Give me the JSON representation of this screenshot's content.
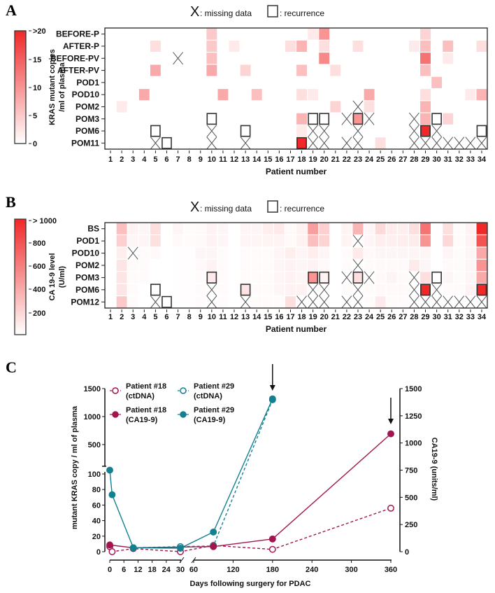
{
  "colors": {
    "high": "#f02828",
    "low": "#ffffff",
    "p18": "#a3154f",
    "p29": "#12808f",
    "frame": "#222222"
  },
  "chart_data": [
    {
      "type": "heatmap",
      "panel_label": "A",
      "legend": {
        "missing_symbol": "X",
        "missing_text": ": missing data",
        "recurrence_text": ": recurrence"
      },
      "colorbar": {
        "title_line1": "KRAS mutant copies",
        "title_line2": "/ml of plasma",
        "ticks": [
          ">20",
          "15",
          "10",
          "5",
          "0"
        ],
        "range": [
          0,
          20
        ]
      },
      "xlabel": "Patient number",
      "patients": [
        "1",
        "2",
        "3",
        "4",
        "5",
        "6",
        "7",
        "8",
        "9",
        "10",
        "11",
        "12",
        "13",
        "14",
        "15",
        "16",
        "17",
        "18",
        "19",
        "20",
        "21",
        "22",
        "23",
        "24",
        "25",
        "26",
        "27",
        "28",
        "29",
        "30",
        "31",
        "32",
        "33",
        "34"
      ],
      "rows": [
        {
          "label": "BEFORE-P",
          "cells": {
            "10": 5,
            "19": 2,
            "20": 10,
            "29": 4
          },
          "missing": [],
          "recurrence": []
        },
        {
          "label": "AFTER-P",
          "cells": {
            "5": 3,
            "10": 5,
            "12": 2,
            "17": 3,
            "18": 7,
            "20": 3,
            "23": 3,
            "28": 2,
            "29": 6,
            "31": 6,
            "34": 3
          },
          "missing": [],
          "recurrence": []
        },
        {
          "label": "BEFORE-PV",
          "cells": {
            "10": 6,
            "20": 11,
            "29": 13,
            "31": 2
          },
          "missing": [
            7
          ],
          "recurrence": []
        },
        {
          "label": "AFTER-PV",
          "cells": {
            "5": 8,
            "10": 8,
            "13": 4,
            "18": 6,
            "21": 3,
            "29": 6
          },
          "missing": [],
          "recurrence": []
        },
        {
          "label": "POD1",
          "cells": {
            "30": 6
          },
          "missing": [],
          "recurrence": []
        },
        {
          "label": "POD10",
          "cells": {
            "4": 8,
            "11": 8,
            "14": 6,
            "18": 3,
            "19": 2,
            "24": 8,
            "29": 3,
            "33": 2,
            "34": 7
          },
          "missing": [],
          "recurrence": []
        },
        {
          "label": "POM2",
          "cells": {
            "2": 2,
            "21": 4,
            "24": 3,
            "29": 7
          },
          "missing": [
            23
          ],
          "recurrence": []
        },
        {
          "label": "POM3",
          "cells": {
            "18": 7,
            "23": 10,
            "29": 7,
            "31": 4
          },
          "missing": [
            22,
            24,
            28
          ],
          "recurrence": [
            10,
            19,
            20,
            23,
            30
          ]
        },
        {
          "label": "POM6",
          "cells": {
            "18": 2,
            "29": 20
          },
          "missing": [
            10,
            19,
            20,
            23,
            28,
            30
          ],
          "recurrence": [
            5,
            13,
            29,
            34
          ]
        },
        {
          "label": "POM11",
          "cells": {
            "18": 20,
            "25": 3
          },
          "missing": [
            5,
            10,
            13,
            19,
            20,
            22,
            23,
            28,
            29,
            30,
            31,
            32,
            33,
            34
          ],
          "recurrence": [
            6,
            18
          ]
        }
      ]
    },
    {
      "type": "heatmap",
      "panel_label": "B",
      "legend": {
        "missing_symbol": "X",
        "missing_text": ": missing data",
        "recurrence_text": ": recurrence"
      },
      "colorbar": {
        "title_line1": "CA 19-9 level",
        "title_line2": "(U/ml)",
        "ticks": [
          "> 1000",
          "800",
          "600",
          "400",
          "200"
        ],
        "range": [
          0,
          1000
        ]
      },
      "xlabel": "Patient number",
      "patients": [
        "1",
        "2",
        "3",
        "4",
        "5",
        "6",
        "7",
        "8",
        "9",
        "10",
        "11",
        "12",
        "13",
        "14",
        "15",
        "16",
        "17",
        "18",
        "19",
        "20",
        "21",
        "22",
        "23",
        "24",
        "25",
        "26",
        "27",
        "28",
        "29",
        "30",
        "31",
        "32",
        "33",
        "34"
      ],
      "rows": [
        {
          "label": "BS",
          "values": [
            0,
            300,
            60,
            40,
            150,
            0,
            40,
            20,
            30,
            60,
            40,
            0,
            40,
            40,
            80,
            100,
            30,
            60,
            450,
            220,
            0,
            50,
            350,
            40,
            170,
            90,
            80,
            150,
            650,
            0,
            150,
            20,
            60,
            1000
          ],
          "recurrence": []
        },
        {
          "label": "POD1",
          "values": [
            0,
            220,
            40,
            40,
            140,
            0,
            30,
            20,
            30,
            60,
            40,
            0,
            40,
            40,
            50,
            50,
            30,
            60,
            300,
            200,
            0,
            50,
            null,
            40,
            80,
            70,
            80,
            90,
            500,
            0,
            180,
            20,
            60,
            800
          ],
          "recurrence": []
        },
        {
          "label": "POD10",
          "values": [
            0,
            80,
            null,
            20,
            30,
            0,
            10,
            10,
            40,
            40,
            20,
            0,
            20,
            20,
            20,
            40,
            80,
            40,
            80,
            40,
            0,
            20,
            100,
            30,
            40,
            40,
            40,
            40,
            40,
            0,
            40,
            20,
            40,
            400
          ],
          "recurrence": []
        },
        {
          "label": "POM2",
          "values": [
            0,
            120,
            20,
            20,
            0,
            0,
            10,
            10,
            30,
            60,
            20,
            0,
            20,
            20,
            20,
            40,
            60,
            40,
            60,
            30,
            0,
            20,
            null,
            20,
            30,
            30,
            30,
            100,
            40,
            0,
            30,
            20,
            40,
            500
          ],
          "recurrence": []
        },
        {
          "label": "POM3",
          "values": [
            0,
            120,
            20,
            20,
            0,
            0,
            10,
            10,
            20,
            100,
            20,
            0,
            20,
            20,
            20,
            40,
            60,
            40,
            500,
            60,
            0,
            null,
            150,
            null,
            30,
            50,
            30,
            null,
            150,
            0,
            40,
            20,
            40,
            400
          ],
          "recurrence": [
            10,
            19,
            20,
            23,
            30
          ]
        },
        {
          "label": "POM6",
          "values": [
            0,
            120,
            20,
            0,
            0,
            0,
            10,
            10,
            20,
            null,
            20,
            0,
            120,
            20,
            20,
            40,
            60,
            60,
            null,
            null,
            0,
            20,
            null,
            20,
            30,
            30,
            30,
            null,
            1000,
            null,
            20,
            20,
            60,
            1000
          ],
          "recurrence": [
            5,
            13,
            29,
            34
          ]
        },
        {
          "label": "POM12",
          "values": [
            0,
            250,
            20,
            0,
            null,
            0,
            10,
            10,
            20,
            null,
            20,
            0,
            null,
            20,
            20,
            20,
            150,
            null,
            null,
            null,
            0,
            null,
            null,
            20,
            100,
            20,
            20,
            null,
            null,
            null,
            null,
            null,
            null,
            null
          ],
          "recurrence": [
            6
          ]
        }
      ]
    },
    {
      "type": "line",
      "panel_label": "C",
      "xlabel": "Days following surgery for PDAC",
      "ylabel_left": "mutant KRAS copy  / ml of plasma",
      "ylabel_right": "CA19-9 (units/ml)",
      "x_ticks_early": [
        "0",
        "6",
        "12",
        "18",
        "24",
        "30"
      ],
      "x_ticks_late": [
        "60",
        "120",
        "180",
        "240",
        "300",
        "360"
      ],
      "y_left_ticks_lower": [
        "0",
        "20",
        "40",
        "60",
        "80",
        "100"
      ],
      "y_left_ticks_upper": [
        "500",
        "1000",
        "1500"
      ],
      "y_right_ticks": [
        "0",
        "250",
        "500",
        "750",
        "1000",
        "1250",
        "1500"
      ],
      "arrows_at_days": [
        180,
        360
      ],
      "series": [
        {
          "name_line1": "Patient #18",
          "name_line2": "(ctDNA)",
          "axis": "left",
          "style": "open-dashed",
          "color": "p18",
          "x": [
            0,
            1,
            10,
            30,
            90,
            180,
            360
          ],
          "y": [
            6.5,
            0,
            4,
            0,
            8,
            3,
            56
          ]
        },
        {
          "name_line1": "Patient #29",
          "name_line2": "(ctDNA)",
          "axis": "left",
          "style": "open-dashed",
          "color": "p29",
          "x": [
            10,
            30,
            90,
            180
          ],
          "y": [
            5,
            6.5,
            7.4,
            1300
          ]
        },
        {
          "name_line1": "Patient #18",
          "name_line2": "(CA19-9)",
          "axis": "right",
          "style": "filled-solid",
          "color": "p18",
          "x": [
            0,
            10,
            90,
            180,
            360
          ],
          "y": [
            62,
            36,
            47,
            117,
            1084
          ]
        },
        {
          "name_line1": "Patient #29",
          "name_line2": "(CA19-9)",
          "axis": "right",
          "style": "filled-solid",
          "color": "p29",
          "x": [
            0,
            1,
            10,
            30,
            90,
            180
          ],
          "y": [
            750,
            524,
            36,
            32,
            181,
            1406
          ]
        }
      ]
    }
  ]
}
